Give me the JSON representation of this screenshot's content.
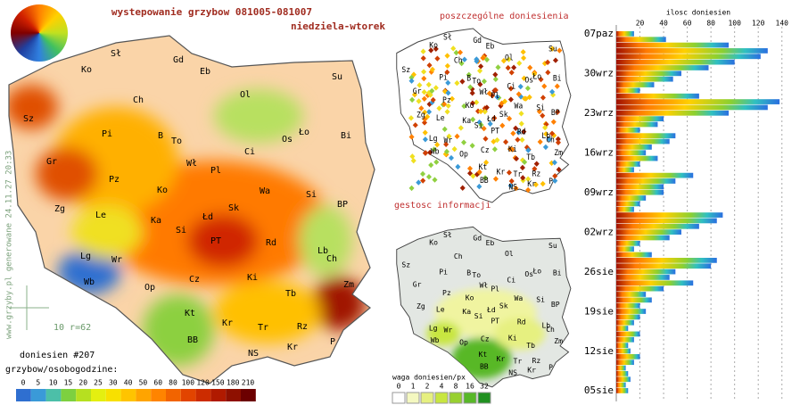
{
  "header": {
    "title": "wystepowanie grzybow 081005-081007",
    "subtitle": "niedziela-wtorek"
  },
  "map": {
    "cities": [
      "Ko",
      "Sł",
      "Gd",
      "Eb",
      "Su",
      "Ch",
      "Ol",
      "Sz",
      "Pi",
      "B",
      "To",
      "Ło",
      "Bi",
      "Os",
      "Ci",
      "Gr",
      "Pz",
      "Wł",
      "Pl",
      "Wa",
      "Ko",
      "Si",
      "Zg",
      "Le",
      "Ka",
      "Łd",
      "Sk",
      "BP",
      "Si",
      "PT",
      "Rd",
      "Lb",
      "Lg",
      "Wr",
      "Ch",
      "Wb",
      "Op",
      "Cz",
      "Ki",
      "Tb",
      "Zm",
      "Kt",
      "Kr",
      "Tr",
      "Rz",
      "BB",
      "NS",
      "Kr",
      "P"
    ],
    "reports": "doniesien #207",
    "scale_label": "10 r=62",
    "legend_title": "grzybow/osobogodzine:",
    "legend": {
      "values": [
        0,
        5,
        10,
        15,
        20,
        25,
        30,
        40,
        50,
        60,
        80,
        100,
        120,
        150,
        180,
        210
      ],
      "colors": [
        "#2f6fd0",
        "#3a9ad8",
        "#4cbfa8",
        "#7dd040",
        "#b6e020",
        "#e4ef10",
        "#f8e000",
        "#ffc400",
        "#ffa400",
        "#ff8400",
        "#f26400",
        "#e24400",
        "#cc2c00",
        "#b01a00",
        "#8e1000",
        "#6c0000"
      ]
    },
    "watermark": "www.grzyby.pl generowane 24.11.27 20:33"
  },
  "points_map": {
    "title": "poszczególne doniesienia"
  },
  "density_map": {
    "title": "gestosc informacji",
    "legend_title": "waga doniesien/px",
    "legend": {
      "values": [
        0,
        1,
        2,
        4,
        8,
        16,
        32
      ],
      "colors": [
        "#ffffff",
        "#f4f8c0",
        "#e6f080",
        "#c8e640",
        "#98d030",
        "#58b828",
        "#209020"
      ]
    }
  },
  "chart_data": {
    "type": "bar",
    "orientation": "horizontal",
    "xlabel": "ilosc doniesien",
    "categories": [
      "07paz",
      null,
      null,
      null,
      null,
      null,
      null,
      "30wrz",
      null,
      null,
      null,
      null,
      null,
      null,
      "23wrz",
      null,
      null,
      null,
      null,
      null,
      null,
      "16wrz",
      null,
      null,
      null,
      null,
      null,
      null,
      "09wrz",
      null,
      null,
      null,
      null,
      null,
      null,
      "02wrz",
      null,
      null,
      null,
      null,
      null,
      null,
      "26sie",
      null,
      null,
      null,
      null,
      null,
      null,
      "19sie",
      null,
      null,
      null,
      null,
      null,
      null,
      "12sie",
      null,
      null,
      null,
      null,
      null,
      null,
      "05sie"
    ],
    "values": [
      15,
      42,
      95,
      128,
      122,
      100,
      78,
      55,
      48,
      32,
      20,
      70,
      138,
      128,
      95,
      40,
      35,
      20,
      50,
      45,
      30,
      25,
      35,
      20,
      15,
      65,
      50,
      40,
      40,
      25,
      20,
      15,
      90,
      85,
      70,
      55,
      45,
      20,
      15,
      30,
      85,
      80,
      50,
      45,
      65,
      40,
      25,
      30,
      20,
      25,
      20,
      15,
      10,
      20,
      15,
      10,
      12,
      20,
      15,
      8,
      10,
      12,
      8,
      10
    ],
    "xlim": [
      0,
      150
    ],
    "xticks": [
      20,
      40,
      60,
      80,
      100,
      120,
      140
    ],
    "grid": true
  }
}
